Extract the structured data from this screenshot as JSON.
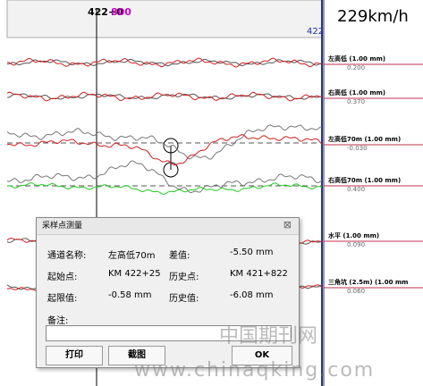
{
  "header": {
    "mileage_black": "422+0",
    "mileage_magenta": "800",
    "marker": "422",
    "speed": "229km/h"
  },
  "channels": [
    {
      "label": "左高低 (1.00 mm)",
      "value": "0.200"
    },
    {
      "label": "右高低 (1.00 mm)",
      "value": "0.370"
    },
    {
      "label": "左高低70m (1.00 mm)",
      "value": "-0.030"
    },
    {
      "label": "右高低70m (1.00 mm)",
      "value": "0.400"
    },
    {
      "label": "水平 (1.00 mm)",
      "value": "0.090"
    },
    {
      "label": "三角坑 (2.5m) (1.00 mm",
      "value": "0.060"
    }
  ],
  "dialog": {
    "title": "采样点测量",
    "close": "⊠",
    "rows": [
      [
        "通道名称:",
        "左高低70m",
        "差值:",
        "-5.50 mm"
      ],
      [
        "起始点:",
        "KM 422+25",
        "历史点:",
        "KM 421+822"
      ],
      [
        "起限值:",
        "-0.58 mm",
        "历史值:",
        "-6.08 mm"
      ]
    ],
    "note_label": "备注:",
    "buttons": [
      "打印",
      "截图",
      "OK"
    ]
  },
  "watermark": {
    "cn": "中国期刊网",
    "url": "www.chinaqking.com"
  }
}
